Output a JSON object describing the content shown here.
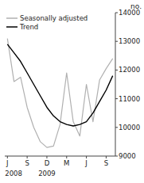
{
  "chart_data": {
    "type": "line",
    "title": "no.",
    "categories": [
      "J",
      null,
      null,
      "S",
      null,
      null,
      "D",
      null,
      null,
      "M",
      null,
      null,
      "J",
      null,
      null,
      "S",
      null
    ],
    "series": [
      {
        "name": "Seasonally adjusted",
        "color": "#b0b0b0",
        "values": [
          13100,
          11600,
          11750,
          10700,
          10000,
          9500,
          9300,
          9350,
          10100,
          11900,
          10200,
          9700,
          11500,
          10200,
          11650,
          12050,
          12400
        ]
      },
      {
        "name": "Trend",
        "color": "#000000",
        "values": [
          12900,
          12600,
          12300,
          11900,
          11500,
          11100,
          10700,
          10400,
          10200,
          10100,
          10050,
          10100,
          10200,
          10500,
          10900,
          11300,
          11800
        ]
      }
    ],
    "ylim": [
      9000,
      14000
    ],
    "yticks": [
      9000,
      10000,
      11000,
      12000,
      13000,
      14000
    ],
    "annotations": [
      {
        "text": "2008",
        "x": 0
      },
      {
        "text": "2009",
        "x": 6
      }
    ],
    "legend": "upper left",
    "grid": false
  }
}
